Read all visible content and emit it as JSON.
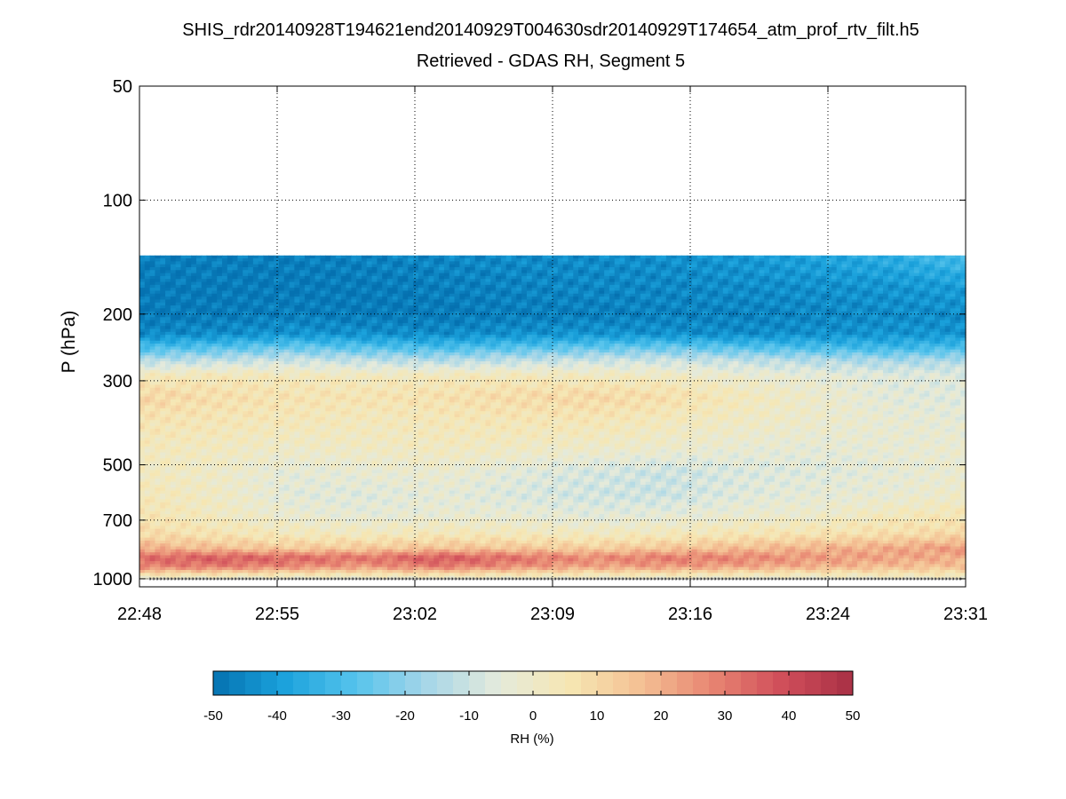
{
  "chart_data": {
    "type": "heatmap",
    "title": "SHIS_rdr20140928T194621end20140929T004630sdr20140929T174654_atm_prof_rtv_filt.h5",
    "subtitle": "Retrieved - GDAS RH, Segment 5",
    "xlabel": "",
    "ylabel": "P (hPa)",
    "y_scale": "log",
    "y_reversed": true,
    "ylim": [
      50,
      1050
    ],
    "x_tick_labels": [
      "22:48",
      "22:55",
      "23:02",
      "23:09",
      "23:16",
      "23:24",
      "23:31"
    ],
    "y_ticks": [
      50,
      100,
      200,
      300,
      500,
      700,
      1000
    ],
    "y_tick_labels": [
      "50",
      "100",
      "200",
      "300",
      "500",
      "700",
      "1000"
    ],
    "grid": true,
    "colorbar": {
      "label": "RH (%)",
      "range": [
        -50,
        50
      ],
      "ticks": [
        -50,
        -40,
        -30,
        -20,
        -10,
        0,
        10,
        20,
        30,
        40,
        50
      ],
      "tick_labels": [
        "-50",
        "-40",
        "-30",
        "-20",
        "-10",
        "0",
        "10",
        "20",
        "30",
        "40",
        "50"
      ],
      "steps": 40,
      "colors": [
        "#0571b0",
        "#1ba2dc",
        "#55c3ec",
        "#a6d6e8",
        "#e4eadc",
        "#f6e7b3",
        "#f4c194",
        "#e88672",
        "#d04e5a",
        "#a83045"
      ]
    },
    "pressure_levels": [
      140,
      170,
      200,
      225,
      245,
      265,
      290,
      330,
      380,
      450,
      520,
      600,
      680,
      760,
      830,
      880,
      930,
      980,
      1000
    ],
    "time_columns": 12,
    "rh_values": [
      [
        -47,
        -47,
        -47,
        -46,
        -45,
        -44,
        -44,
        -43,
        -41,
        -38,
        -35,
        -30
      ],
      [
        -48,
        -48,
        -48,
        -48,
        -47,
        -46,
        -45,
        -45,
        -44,
        -43,
        -42,
        -40
      ],
      [
        -48,
        -48,
        -47,
        -48,
        -48,
        -47,
        -47,
        -46,
        -46,
        -45,
        -44,
        -44
      ],
      [
        -45,
        -44,
        -42,
        -43,
        -44,
        -43,
        -42,
        -43,
        -44,
        -43,
        -42,
        -42
      ],
      [
        -30,
        -28,
        -25,
        -28,
        -30,
        -28,
        -26,
        -25,
        -28,
        -30,
        -32,
        -30
      ],
      [
        -14,
        -12,
        -10,
        -12,
        -14,
        -12,
        -10,
        -10,
        -12,
        -14,
        -16,
        -15
      ],
      [
        3,
        4,
        3,
        2,
        3,
        3,
        2,
        1,
        -2,
        -4,
        -6,
        -6
      ],
      [
        11,
        8,
        6,
        6,
        7,
        9,
        10,
        8,
        3,
        -1,
        -5,
        -6
      ],
      [
        6,
        5,
        4,
        3,
        4,
        5,
        5,
        3,
        1,
        -1,
        -3,
        -4
      ],
      [
        3,
        2,
        0,
        1,
        2,
        1,
        0,
        -1,
        -3,
        -4,
        -3,
        -2
      ],
      [
        2,
        0,
        -4,
        -3,
        -2,
        -5,
        -8,
        -10,
        -7,
        -6,
        -4,
        -2
      ],
      [
        4,
        1,
        -5,
        -6,
        -4,
        -7,
        -9,
        -10,
        -6,
        -4,
        -3,
        0
      ],
      [
        6,
        2,
        -2,
        -4,
        -3,
        -3,
        -5,
        -4,
        -2,
        -1,
        3,
        5
      ],
      [
        9,
        6,
        3,
        2,
        4,
        3,
        2,
        3,
        5,
        6,
        8,
        10
      ],
      [
        20,
        17,
        14,
        14,
        16,
        15,
        13,
        15,
        17,
        19,
        21,
        24
      ],
      [
        33,
        36,
        34,
        31,
        37,
        32,
        27,
        30,
        28,
        24,
        22,
        20
      ],
      [
        28,
        30,
        27,
        24,
        30,
        26,
        22,
        24,
        22,
        20,
        17,
        16
      ],
      [
        5,
        4,
        3,
        3,
        5,
        4,
        2,
        3,
        2,
        1,
        3,
        3
      ],
      [
        0,
        0,
        0,
        0,
        0,
        0,
        0,
        0,
        0,
        0,
        0,
        0
      ]
    ]
  }
}
